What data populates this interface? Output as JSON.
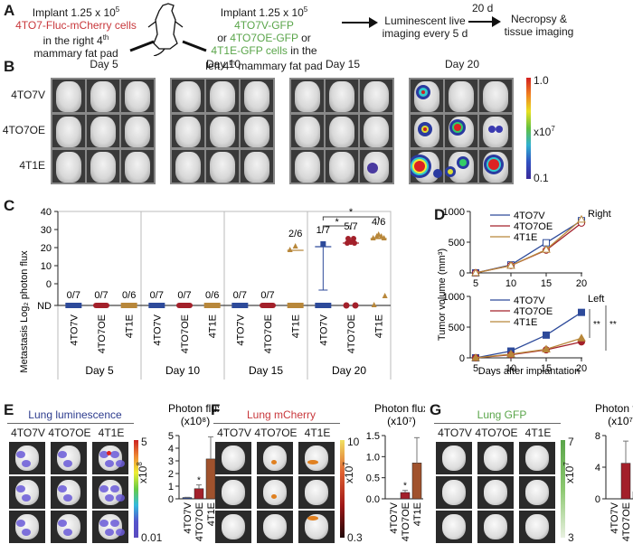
{
  "panel_labels": [
    "A",
    "B",
    "C",
    "D",
    "E",
    "F",
    "G"
  ],
  "panel_a": {
    "step1": {
      "line1": "Implant 1.25 x 10",
      "sup": "5",
      "cells": "4TO7-Fluc-mCherry cells",
      "line3": "in the right 4",
      "line3_sup": "th",
      "line4": "mammary fat pad"
    },
    "step2": {
      "line1": "Implant 1.25 x 10",
      "sup": "5",
      "cells1": "4TO7V-GFP",
      "or1": "or ",
      "cells2": "4TO7OE-GFP",
      "or2": " or",
      "cells3": "4T1E-GFP cells",
      "in_the": " in the",
      "line4": "left 4",
      "line4_sup": "th",
      "line4_end": " mammary fat pad"
    },
    "step3": {
      "line1": "Luminescent live",
      "line2": "imaging every 5 d"
    },
    "arrow2_label": "20 d",
    "step4": {
      "line1": "Necropsy &",
      "line2": "tissue imaging"
    }
  },
  "panel_b": {
    "days": [
      "Day 5",
      "Day 10",
      "Day 15",
      "Day 20"
    ],
    "rows": [
      "4TO7V",
      "4TO7OE",
      "4T1E"
    ],
    "colorbar": {
      "max": "1.0",
      "unit": "x10",
      "unit_sup": "7",
      "min": "0.1"
    }
  },
  "panel_d": {
    "ylabel": "Tumor volume (mm³)",
    "xlabel": "Days after implantation",
    "right_label": "Right",
    "left_label": "Left",
    "sig1": "**",
    "sig2": "**"
  },
  "panel_e": {
    "title": "Lung luminescence",
    "cols": [
      "4TO7V",
      "4TO7OE",
      "4T1E"
    ],
    "colorbar": {
      "max": "5",
      "unit": "x10",
      "unit_sup": "8",
      "min": "0.01"
    }
  },
  "panel_f": {
    "title": "Lung mCherry",
    "cols": [
      "4TO7V",
      "4TO7OE",
      "4T1E"
    ],
    "colorbar": {
      "max": "10",
      "unit": "x10",
      "unit_sup": "7",
      "min": "0.3"
    }
  },
  "panel_g": {
    "title": "Lung GFP",
    "cols": [
      "4TO7V",
      "4TO7OE",
      "4T1E"
    ],
    "colorbar": {
      "max": "7",
      "unit": "x10",
      "unit_sup": "7",
      "min": "3"
    }
  },
  "colors": {
    "v": "#2d4a9a",
    "oe": "#a3202a",
    "t1e": "#b8873a",
    "t1e_bar": "#a0522d",
    "title_e": "#2d3c8e",
    "title_f": "#c8383c",
    "title_g": "#5aa54a"
  },
  "chart_data": [
    {
      "id": "C",
      "type": "scatter",
      "ylabel": "Metastasis Log₂ photon flux",
      "yticks": [
        "ND",
        "0",
        "10",
        "20",
        "30",
        "40"
      ],
      "ylim": [
        -2,
        40
      ],
      "groups": [
        {
          "day": "Day 5",
          "cats": [
            "4TO7V",
            "4TO7OE",
            "4T1E"
          ],
          "fractions": [
            "0/7",
            "0/7",
            "0/6"
          ],
          "means": [
            null,
            null,
            null
          ]
        },
        {
          "day": "Day 10",
          "cats": [
            "4TO7V",
            "4TO7OE",
            "4T1E"
          ],
          "fractions": [
            "0/7",
            "0/7",
            "0/6"
          ],
          "means": [
            null,
            null,
            null
          ]
        },
        {
          "day": "Day 15",
          "cats": [
            "4TO7V",
            "4TO7OE",
            "4T1E"
          ],
          "fractions": [
            "0/7",
            "0/7",
            "2/6"
          ],
          "means": [
            null,
            null,
            20
          ]
        },
        {
          "day": "Day 20",
          "cats": [
            "4TO7V",
            "4TO7OE",
            "4T1E"
          ],
          "fractions": [
            "1/7",
            "5/7",
            "4/6"
          ],
          "means": [
            22,
            24,
            26.5
          ],
          "errors": [
            24,
            1,
            1
          ]
        }
      ],
      "significance": [
        {
          "from": "4TO7V",
          "to": "4TO7OE",
          "day": "Day 20",
          "label": "*"
        },
        {
          "from": "4TO7V",
          "to": "4T1E",
          "day": "Day 20",
          "label": "*"
        }
      ]
    },
    {
      "id": "D-right",
      "type": "line",
      "title": "Right",
      "x": [
        5,
        10,
        15,
        20
      ],
      "ylim": [
        0,
        1000
      ],
      "yticks": [
        "0",
        "500",
        "1000"
      ],
      "series": [
        {
          "name": "4TO7V",
          "values": [
            0,
            130,
            490,
            850
          ],
          "marker": "open-square"
        },
        {
          "name": "4TO7OE",
          "values": [
            0,
            120,
            370,
            810
          ],
          "marker": "open-circle"
        },
        {
          "name": "4T1E",
          "values": [
            0,
            120,
            380,
            870
          ],
          "marker": "open-triangle"
        }
      ]
    },
    {
      "id": "D-left",
      "type": "line",
      "title": "Left",
      "x": [
        5,
        10,
        15,
        20
      ],
      "ylim": [
        0,
        1000
      ],
      "yticks": [
        "0",
        "500",
        "1000"
      ],
      "xlabel": "Days after implantation",
      "series": [
        {
          "name": "4TO7V",
          "values": [
            0,
            110,
            370,
            740
          ],
          "marker": "filled-square"
        },
        {
          "name": "4TO7OE",
          "values": [
            0,
            50,
            130,
            260
          ],
          "marker": "filled-circle"
        },
        {
          "name": "4T1E",
          "values": [
            0,
            60,
            140,
            320
          ],
          "marker": "filled-triangle"
        }
      ]
    },
    {
      "id": "E-bar",
      "type": "bar",
      "title": "Photon flux (x10⁸)",
      "categories": [
        "4TO7V",
        "4TO7OE",
        "4T1E"
      ],
      "values": [
        0.1,
        0.8,
        3.15
      ],
      "errors": [
        0.02,
        0.3,
        1.75
      ],
      "ylim": [
        0,
        5
      ],
      "yticks": [
        "0",
        "1",
        "2",
        "3",
        "4",
        "5"
      ],
      "sig": [
        "",
        "*",
        ""
      ]
    },
    {
      "id": "F-bar",
      "type": "bar",
      "title": "Photon flux (x10⁷)",
      "categories": [
        "4TO7V",
        "4TO7OE",
        "4T1E"
      ],
      "values": [
        0,
        0.15,
        0.85
      ],
      "errors": [
        0,
        0.05,
        0.6
      ],
      "ylim": [
        0,
        1.5
      ],
      "yticks": [
        "0.0",
        "0.5",
        "1.0",
        "1.5"
      ],
      "sig": [
        "",
        "*",
        ""
      ]
    },
    {
      "id": "G-bar",
      "type": "bar",
      "title": "Photon flux (x10⁷)",
      "categories": [
        "4TO7V",
        "4TO7OE",
        "4T1E"
      ],
      "values": [
        0,
        4.5,
        0.9
      ],
      "errors": [
        0,
        2.8,
        0.5
      ],
      "ylim": [
        0,
        8
      ],
      "yticks": [
        "0",
        "4",
        "8"
      ],
      "sig": [
        "",
        "",
        ""
      ]
    }
  ]
}
